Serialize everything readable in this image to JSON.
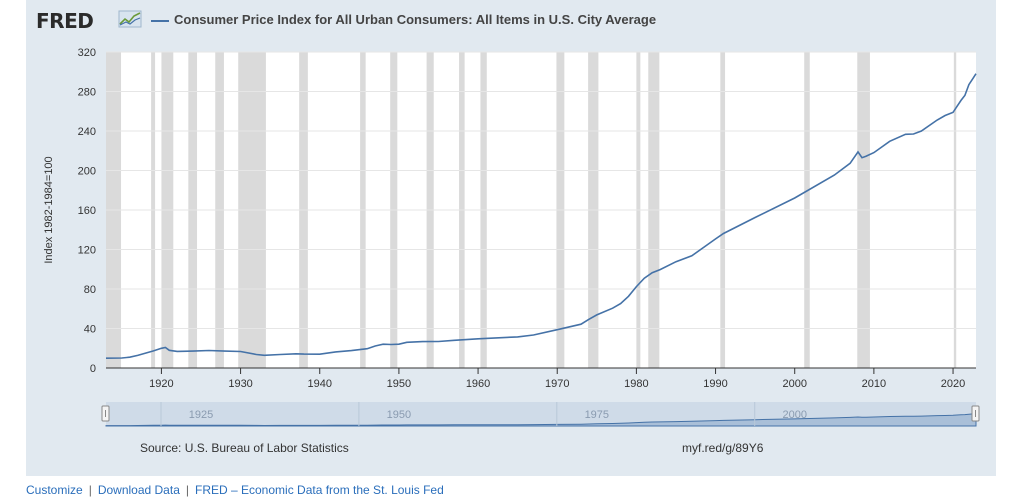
{
  "header": {
    "brand": "FRED",
    "brand_icon": "line-chart-icon",
    "series_title": "Consumer Price Index for All Urban Consumers: All Items in U.S. City Average"
  },
  "source_text": "Source: U.S. Bureau of Labor Statistics",
  "short_link": "myf.red/g/89Y6",
  "footer": {
    "links": [
      "Customize",
      "Download Data",
      "FRED – Economic Data from the St. Louis Fed"
    ]
  },
  "colors": {
    "series": "#4572a7",
    "panel": "#e1e9f0",
    "recession": "#dadada",
    "navigator_fill": "#a9bfd8"
  },
  "chart_data": {
    "type": "line",
    "title": "Consumer Price Index for All Urban Consumers: All Items in U.S. City Average",
    "ylabel": "Index 1982-1984=100",
    "xlabel": "",
    "xlim": [
      1913.0,
      2022.9
    ],
    "ylim": [
      0,
      320
    ],
    "xticks": [
      1920,
      1930,
      1940,
      1950,
      1960,
      1970,
      1980,
      1990,
      2000,
      2010,
      2020
    ],
    "yticks": [
      0,
      40,
      80,
      120,
      160,
      200,
      240,
      280,
      320
    ],
    "grid": true,
    "recessions": [
      [
        1913.0,
        1914.9
      ],
      [
        1918.7,
        1919.2
      ],
      [
        1920.0,
        1921.5
      ],
      [
        1923.4,
        1924.5
      ],
      [
        1926.8,
        1927.9
      ],
      [
        1929.7,
        1933.2
      ],
      [
        1937.4,
        1938.5
      ],
      [
        1945.1,
        1945.8
      ],
      [
        1948.9,
        1949.8
      ],
      [
        1953.5,
        1954.4
      ],
      [
        1957.6,
        1958.3
      ],
      [
        1960.3,
        1961.1
      ],
      [
        1969.9,
        1970.9
      ],
      [
        1973.9,
        1975.2
      ],
      [
        1980.0,
        1980.5
      ],
      [
        1981.5,
        1982.9
      ],
      [
        1990.6,
        1991.2
      ],
      [
        2001.2,
        2001.9
      ],
      [
        2007.9,
        2009.5
      ],
      [
        2020.1,
        2020.4
      ]
    ],
    "series": [
      {
        "name": "Consumer Price Index for All Urban Consumers: All Items in U.S. City Average",
        "x": [
          1913,
          1915,
          1916,
          1917,
          1918,
          1919,
          1920,
          1920.5,
          1921,
          1922,
          1924,
          1926,
          1928,
          1930,
          1932,
          1933,
          1935,
          1937,
          1938,
          1940,
          1942,
          1944,
          1946,
          1947,
          1948,
          1949,
          1950,
          1951,
          1953,
          1955,
          1957,
          1960,
          1965,
          1967,
          1970,
          1973,
          1974,
          1975,
          1977,
          1978,
          1979,
          1980,
          1981,
          1982,
          1983,
          1985,
          1987,
          1990,
          1991,
          1995,
          2000,
          2005,
          2007,
          2008,
          2008.5,
          2009,
          2010,
          2012,
          2014,
          2015,
          2016,
          2018,
          2019,
          2020,
          2021,
          2021.5,
          2022,
          2022.5,
          2022.9
        ],
        "values": [
          9.9,
          10.1,
          10.9,
          12.8,
          15.1,
          17.3,
          20.0,
          20.8,
          17.9,
          16.8,
          17.1,
          17.7,
          17.1,
          16.7,
          13.7,
          12.9,
          13.7,
          14.4,
          14.1,
          14.0,
          16.3,
          17.6,
          19.5,
          22.3,
          24.1,
          23.8,
          24.1,
          26.0,
          26.7,
          26.8,
          28.1,
          29.6,
          31.5,
          33.4,
          38.8,
          44.4,
          49.3,
          53.8,
          60.6,
          65.2,
          72.6,
          82.4,
          90.9,
          96.5,
          99.6,
          107.6,
          113.6,
          130.7,
          136.2,
          152.4,
          172.2,
          195.3,
          207.3,
          218.8,
          213.0,
          214.5,
          218.1,
          229.6,
          236.7,
          237.0,
          240.0,
          251.1,
          255.7,
          258.8,
          271.0,
          276.0,
          287.0,
          293.0,
          298.0
        ]
      }
    ],
    "navigator": {
      "xticks": [
        1925,
        1950,
        1975,
        2000
      ]
    }
  }
}
